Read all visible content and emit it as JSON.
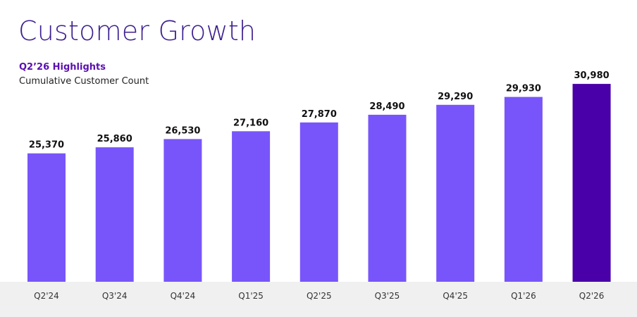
{
  "header": {
    "title": "Customer Growth",
    "subtitle": "Q2’26 Highlights",
    "metric_label": "Cumulative Customer Count"
  },
  "chart_data": {
    "type": "bar",
    "title": "Customer Growth",
    "subtitle": "Q2’26 Highlights",
    "ylabel": "Cumulative Customer Count",
    "xlabel": "",
    "categories": [
      "Q2'24",
      "Q3'24",
      "Q4'24",
      "Q1'25",
      "Q2'25",
      "Q3'25",
      "Q4'25",
      "Q1'26",
      "Q2'26"
    ],
    "values": [
      25370,
      25860,
      26530,
      27160,
      27870,
      28490,
      29290,
      29930,
      30980
    ],
    "value_labels": [
      "25,370",
      "25,860",
      "26,530",
      "27,160",
      "27,870",
      "28,490",
      "29,290",
      "29,930",
      "30,980"
    ],
    "ylim": [
      15000,
      31500
    ],
    "grid": false,
    "legend": "none",
    "colors": {
      "bar": "#7855fa",
      "highlight_bar": "#4a00a8",
      "title": "#3d1f8f",
      "subtitle": "#5b0fb0",
      "axis_band": "#f0f0f0"
    },
    "highlight_index": 8
  }
}
